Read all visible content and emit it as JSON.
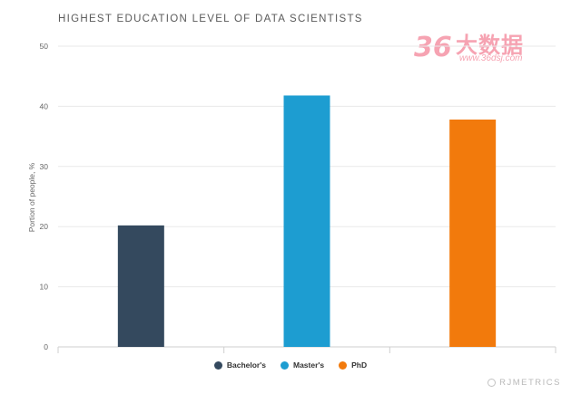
{
  "chart_title": "HIGHEST EDUCATION LEVEL OF DATA SCIENTISTS",
  "watermark": {
    "logo_text": "大数据",
    "logo_number": "36",
    "url": "www.36dsj.com"
  },
  "brand": "RJMETRICS",
  "chart_data": {
    "type": "bar",
    "title": "HIGHEST EDUCATION LEVEL OF DATA SCIENTISTS",
    "categories": [
      "Bachelor's",
      "Master's",
      "PhD"
    ],
    "values": [
      20.2,
      41.8,
      37.8
    ],
    "colors": [
      "#34495e",
      "#1d9dd1",
      "#f27a0c"
    ],
    "xlabel": "",
    "ylabel": "Portion of people, %",
    "ylim": [
      0,
      50
    ],
    "yticks": [
      "0",
      "10",
      "20",
      "30",
      "40",
      "50"
    ],
    "grid": true,
    "legend_position": "bottom-center"
  },
  "legend": [
    {
      "label": "Bachelor's",
      "color": "#34495e"
    },
    {
      "label": "Master's",
      "color": "#1d9dd1"
    },
    {
      "label": "PhD",
      "color": "#f27a0c"
    }
  ]
}
